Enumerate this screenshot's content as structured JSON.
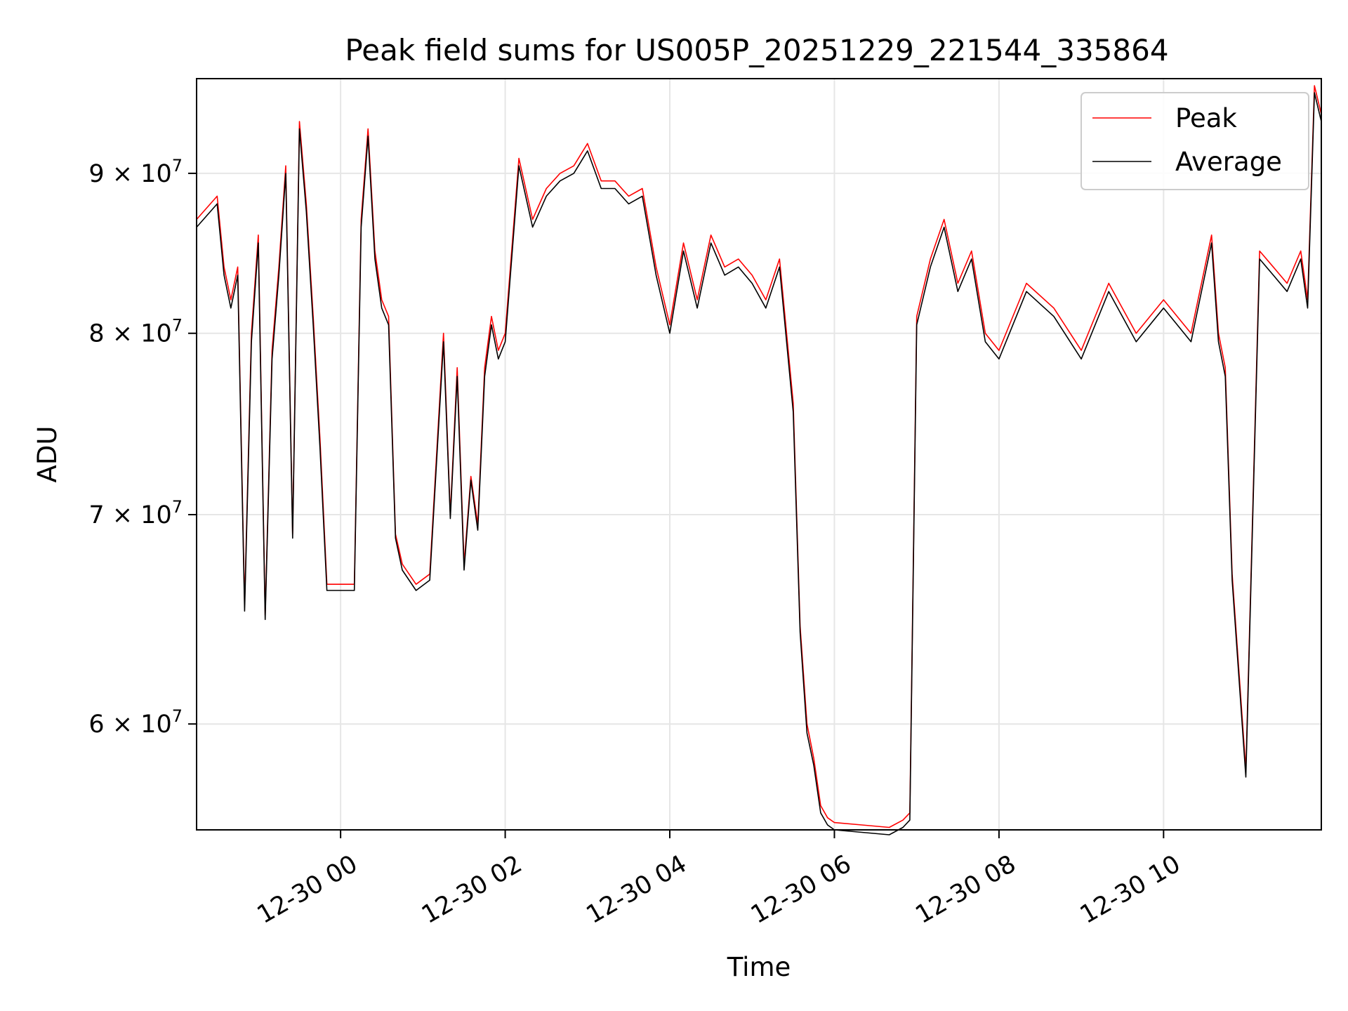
{
  "chart_data": {
    "type": "line",
    "title": "Peak field sums for US005P_20251229_221544_335864",
    "xlabel": "Time",
    "ylabel": "ADU",
    "x_range": [
      "2025-12-29 22:15",
      "2025-12-30 11:55"
    ],
    "ylim": [
      55500000,
      96500000
    ],
    "yscale": "log",
    "grid": true,
    "legend_position": "top-right",
    "x_ticks": [
      {
        "value": "2025-12-30 00:00",
        "label": "12-30 00"
      },
      {
        "value": "2025-12-30 02:00",
        "label": "12-30 02"
      },
      {
        "value": "2025-12-30 04:00",
        "label": "12-30 04"
      },
      {
        "value": "2025-12-30 06:00",
        "label": "12-30 06"
      },
      {
        "value": "2025-12-30 08:00",
        "label": "12-30 08"
      },
      {
        "value": "2025-12-30 10:00",
        "label": "12-30 10"
      }
    ],
    "y_ticks": [
      {
        "value": 60000000,
        "mantissa": "6",
        "base": "10",
        "exp": "7"
      },
      {
        "value": 70000000,
        "mantissa": "7",
        "base": "10",
        "exp": "7"
      },
      {
        "value": 80000000,
        "mantissa": "8",
        "base": "10",
        "exp": "7"
      },
      {
        "value": 90000000,
        "mantissa": "9",
        "base": "10",
        "exp": "7"
      }
    ],
    "series": [
      {
        "name": "Peak",
        "color": "#ff0000",
        "x": [
          "2025-12-29 22:15",
          "2025-12-29 22:30",
          "2025-12-29 22:35",
          "2025-12-29 22:40",
          "2025-12-29 22:45",
          "2025-12-29 22:50",
          "2025-12-29 22:55",
          "2025-12-29 23:00",
          "2025-12-29 23:05",
          "2025-12-29 23:10",
          "2025-12-29 23:15",
          "2025-12-29 23:20",
          "2025-12-29 23:25",
          "2025-12-29 23:30",
          "2025-12-29 23:35",
          "2025-12-29 23:40",
          "2025-12-29 23:45",
          "2025-12-29 23:50",
          "2025-12-30 00:00",
          "2025-12-30 00:10",
          "2025-12-30 00:15",
          "2025-12-30 00:20",
          "2025-12-30 00:25",
          "2025-12-30 00:30",
          "2025-12-30 00:35",
          "2025-12-30 00:40",
          "2025-12-30 00:45",
          "2025-12-30 00:55",
          "2025-12-30 01:05",
          "2025-12-30 01:15",
          "2025-12-30 01:20",
          "2025-12-30 01:25",
          "2025-12-30 01:30",
          "2025-12-30 01:35",
          "2025-12-30 01:40",
          "2025-12-30 01:45",
          "2025-12-30 01:50",
          "2025-12-30 01:55",
          "2025-12-30 02:00",
          "2025-12-30 02:10",
          "2025-12-30 02:20",
          "2025-12-30 02:30",
          "2025-12-30 02:40",
          "2025-12-30 02:50",
          "2025-12-30 03:00",
          "2025-12-30 03:10",
          "2025-12-30 03:20",
          "2025-12-30 03:30",
          "2025-12-30 03:40",
          "2025-12-30 03:50",
          "2025-12-30 04:00",
          "2025-12-30 04:10",
          "2025-12-30 04:20",
          "2025-12-30 04:30",
          "2025-12-30 04:40",
          "2025-12-30 04:50",
          "2025-12-30 05:00",
          "2025-12-30 05:10",
          "2025-12-30 05:20",
          "2025-12-30 05:30",
          "2025-12-30 05:35",
          "2025-12-30 05:40",
          "2025-12-30 05:45",
          "2025-12-30 05:50",
          "2025-12-30 05:55",
          "2025-12-30 06:00",
          "2025-12-30 06:20",
          "2025-12-30 06:40",
          "2025-12-30 06:50",
          "2025-12-30 06:55",
          "2025-12-30 07:00",
          "2025-12-30 07:10",
          "2025-12-30 07:20",
          "2025-12-30 07:30",
          "2025-12-30 07:40",
          "2025-12-30 07:50",
          "2025-12-30 08:00",
          "2025-12-30 08:20",
          "2025-12-30 08:40",
          "2025-12-30 09:00",
          "2025-12-30 09:20",
          "2025-12-30 09:40",
          "2025-12-30 10:00",
          "2025-12-30 10:20",
          "2025-12-30 10:35",
          "2025-12-30 10:40",
          "2025-12-30 10:45",
          "2025-12-30 10:50",
          "2025-12-30 11:00",
          "2025-12-30 11:10",
          "2025-12-30 11:20",
          "2025-12-30 11:30",
          "2025-12-30 11:40",
          "2025-12-30 11:45",
          "2025-12-30 11:50",
          "2025-12-30 11:55"
        ],
        "values": [
          87000000,
          88500000,
          84000000,
          82000000,
          84000000,
          65500000,
          80000000,
          86000000,
          65000000,
          79000000,
          84000000,
          90500000,
          69000000,
          93500000,
          88000000,
          81000000,
          74000000,
          66500000,
          66500000,
          66500000,
          87000000,
          93000000,
          85000000,
          82000000,
          81000000,
          69000000,
          67500000,
          66500000,
          67000000,
          80000000,
          70000000,
          78000000,
          67500000,
          72000000,
          69500000,
          78000000,
          81000000,
          79000000,
          80000000,
          91000000,
          87000000,
          89000000,
          90000000,
          90500000,
          92000000,
          89500000,
          89500000,
          88500000,
          89000000,
          84000000,
          80500000,
          85500000,
          82000000,
          86000000,
          84000000,
          84500000,
          83500000,
          82000000,
          84500000,
          76000000,
          64500000,
          60000000,
          58500000,
          56500000,
          56000000,
          55800000,
          55700000,
          55600000,
          55900000,
          56200000,
          81000000,
          84500000,
          87000000,
          83000000,
          85000000,
          80000000,
          79000000,
          83000000,
          81500000,
          79000000,
          83000000,
          80000000,
          82000000,
          80000000,
          86000000,
          80000000,
          78000000,
          67000000,
          58000000,
          85000000,
          84000000,
          83000000,
          85000000,
          82000000,
          96000000,
          94000000
        ]
      },
      {
        "name": "Average",
        "color": "#000000",
        "x": [
          "2025-12-29 22:15",
          "2025-12-29 22:30",
          "2025-12-29 22:35",
          "2025-12-29 22:40",
          "2025-12-29 22:45",
          "2025-12-29 22:50",
          "2025-12-29 22:55",
          "2025-12-29 23:00",
          "2025-12-29 23:05",
          "2025-12-29 23:10",
          "2025-12-29 23:15",
          "2025-12-29 23:20",
          "2025-12-29 23:25",
          "2025-12-29 23:30",
          "2025-12-29 23:35",
          "2025-12-29 23:40",
          "2025-12-29 23:45",
          "2025-12-29 23:50",
          "2025-12-30 00:00",
          "2025-12-30 00:10",
          "2025-12-30 00:15",
          "2025-12-30 00:20",
          "2025-12-30 00:25",
          "2025-12-30 00:30",
          "2025-12-30 00:35",
          "2025-12-30 00:40",
          "2025-12-30 00:45",
          "2025-12-30 00:55",
          "2025-12-30 01:05",
          "2025-12-30 01:15",
          "2025-12-30 01:20",
          "2025-12-30 01:25",
          "2025-12-30 01:30",
          "2025-12-30 01:35",
          "2025-12-30 01:40",
          "2025-12-30 01:45",
          "2025-12-30 01:50",
          "2025-12-30 01:55",
          "2025-12-30 02:00",
          "2025-12-30 02:10",
          "2025-12-30 02:20",
          "2025-12-30 02:30",
          "2025-12-30 02:40",
          "2025-12-30 02:50",
          "2025-12-30 03:00",
          "2025-12-30 03:10",
          "2025-12-30 03:20",
          "2025-12-30 03:30",
          "2025-12-30 03:40",
          "2025-12-30 03:50",
          "2025-12-30 04:00",
          "2025-12-30 04:10",
          "2025-12-30 04:20",
          "2025-12-30 04:30",
          "2025-12-30 04:40",
          "2025-12-30 04:50",
          "2025-12-30 05:00",
          "2025-12-30 05:10",
          "2025-12-30 05:20",
          "2025-12-30 05:30",
          "2025-12-30 05:35",
          "2025-12-30 05:40",
          "2025-12-30 05:45",
          "2025-12-30 05:50",
          "2025-12-30 05:55",
          "2025-12-30 06:00",
          "2025-12-30 06:20",
          "2025-12-30 06:40",
          "2025-12-30 06:50",
          "2025-12-30 06:55",
          "2025-12-30 07:00",
          "2025-12-30 07:10",
          "2025-12-30 07:20",
          "2025-12-30 07:30",
          "2025-12-30 07:40",
          "2025-12-30 07:50",
          "2025-12-30 08:00",
          "2025-12-30 08:20",
          "2025-12-30 08:40",
          "2025-12-30 09:00",
          "2025-12-30 09:20",
          "2025-12-30 09:40",
          "2025-12-30 10:00",
          "2025-12-30 10:20",
          "2025-12-30 10:35",
          "2025-12-30 10:40",
          "2025-12-30 10:45",
          "2025-12-30 10:50",
          "2025-12-30 11:00",
          "2025-12-30 11:10",
          "2025-12-30 11:20",
          "2025-12-30 11:30",
          "2025-12-30 11:40",
          "2025-12-30 11:45",
          "2025-12-30 11:50",
          "2025-12-30 11:55"
        ],
        "values": [
          86500000,
          88000000,
          83500000,
          81500000,
          83500000,
          65200000,
          79500000,
          85500000,
          64800000,
          78500000,
          83500000,
          90000000,
          68800000,
          93000000,
          87500000,
          80500000,
          73500000,
          66200000,
          66200000,
          66200000,
          86500000,
          92500000,
          84500000,
          81500000,
          80500000,
          68800000,
          67200000,
          66200000,
          66700000,
          79500000,
          69800000,
          77500000,
          67200000,
          71800000,
          69200000,
          77500000,
          80500000,
          78500000,
          79500000,
          90500000,
          86500000,
          88500000,
          89500000,
          90000000,
          91500000,
          89000000,
          89000000,
          88000000,
          88500000,
          83500000,
          80000000,
          85000000,
          81500000,
          85500000,
          83500000,
          84000000,
          83000000,
          81500000,
          84000000,
          75500000,
          64200000,
          59600000,
          58200000,
          56200000,
          55700000,
          55500000,
          55400000,
          55300000,
          55600000,
          55900000,
          80500000,
          84000000,
          86500000,
          82500000,
          84500000,
          79500000,
          78500000,
          82500000,
          81000000,
          78500000,
          82500000,
          79500000,
          81500000,
          79500000,
          85500000,
          79500000,
          77500000,
          66700000,
          57700000,
          84500000,
          83500000,
          82500000,
          84500000,
          81500000,
          95500000,
          93500000
        ]
      }
    ]
  }
}
